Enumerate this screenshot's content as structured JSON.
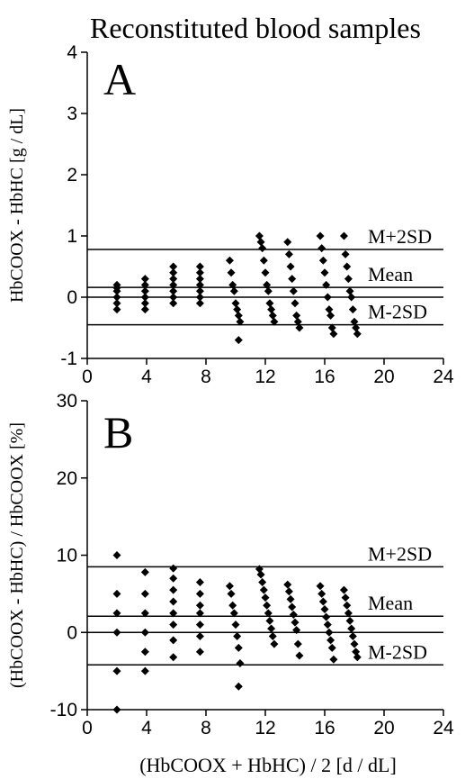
{
  "figure": {
    "title": "Reconstituted blood samples",
    "xlabel": "(HbCOOX + HbHC) / 2  [d / dL]"
  },
  "chart_data": [
    {
      "type": "scatter",
      "panel_label": "A",
      "title": "Reconstituted blood samples",
      "xlabel": "",
      "ylabel": "HbCOOX - HbHC [g / dL]",
      "xlim": [
        0,
        24
      ],
      "ylim": [
        -1,
        4
      ],
      "xticks": [
        0,
        4,
        8,
        12,
        16,
        20,
        24
      ],
      "yticks": [
        -1,
        0,
        1,
        2,
        3,
        4
      ],
      "grid": false,
      "reference_lines": [
        {
          "label": "M+2SD",
          "y": 0.78
        },
        {
          "label": "Mean",
          "y": 0.16
        },
        {
          "label": "",
          "y": 0
        },
        {
          "label": "M-2SD",
          "y": -0.45
        }
      ],
      "points": {
        "x": [
          2,
          2,
          2,
          2,
          2,
          2,
          3.9,
          3.9,
          3.9,
          3.9,
          3.9,
          3.9,
          5.8,
          5.8,
          5.8,
          5.8,
          5.8,
          5.8,
          5.8,
          7.6,
          7.6,
          7.6,
          7.6,
          7.6,
          7.6,
          7.6,
          9.6,
          9.7,
          9.8,
          9.9,
          10.0,
          10.1,
          10.2,
          10.3,
          10.2,
          11.6,
          11.7,
          11.8,
          11.9,
          12.0,
          12.1,
          12.2,
          12.3,
          12.4,
          12.5,
          12.6,
          13.5,
          13.6,
          13.7,
          13.8,
          13.9,
          14.0,
          14.1,
          14.2,
          14.3,
          15.7,
          15.8,
          15.9,
          16.0,
          16.1,
          16.2,
          16.3,
          16.4,
          16.5,
          16.6,
          17.3,
          17.4,
          17.5,
          17.6,
          17.7,
          17.8,
          17.9,
          18.0,
          18.1,
          18.2
        ],
        "y": [
          0.2,
          0.1,
          0,
          -0.1,
          -0.2,
          0.15,
          0.3,
          0.2,
          0.1,
          0,
          -0.1,
          -0.2,
          0.5,
          0.4,
          0.3,
          0.2,
          0.1,
          0,
          -0.1,
          0.5,
          0.4,
          0.3,
          0.2,
          0.1,
          0,
          -0.1,
          0.6,
          0.4,
          0.2,
          0.1,
          -0.1,
          -0.2,
          -0.3,
          -0.4,
          -0.7,
          1.0,
          0.9,
          0.8,
          0.6,
          0.4,
          0.2,
          0.1,
          -0.1,
          -0.2,
          -0.3,
          -0.4,
          0.9,
          0.7,
          0.5,
          0.3,
          0.1,
          -0.1,
          -0.3,
          -0.4,
          -0.5,
          1.0,
          0.8,
          0.6,
          0.4,
          0.2,
          0,
          -0.2,
          -0.3,
          -0.5,
          -0.6,
          1.0,
          0.7,
          0.5,
          0.3,
          0.1,
          0,
          -0.2,
          -0.4,
          -0.5,
          -0.6
        ]
      }
    },
    {
      "type": "scatter",
      "panel_label": "B",
      "xlabel": "(HbCOOX + HbHC) / 2  [d / dL]",
      "ylabel": "(HbCOOX - HbHC) / HbCOOX  [%]",
      "xlim": [
        0,
        24
      ],
      "ylim": [
        -10,
        30
      ],
      "xticks": [
        0,
        4,
        8,
        12,
        16,
        20,
        24
      ],
      "yticks": [
        -10,
        0,
        10,
        20,
        30
      ],
      "grid": false,
      "reference_lines": [
        {
          "label": "M+2SD",
          "y": 8.5
        },
        {
          "label": "Mean",
          "y": 2.1
        },
        {
          "label": "",
          "y": 0
        },
        {
          "label": "M-2SD",
          "y": -4.2
        }
      ],
      "points": {
        "x": [
          2,
          2,
          2,
          2,
          2,
          2,
          3.9,
          3.9,
          3.9,
          3.9,
          3.9,
          3.9,
          5.8,
          5.8,
          5.8,
          5.8,
          5.8,
          5.8,
          5.8,
          5.8,
          7.6,
          7.6,
          7.6,
          7.6,
          7.6,
          7.6,
          7.6,
          9.6,
          9.7,
          9.8,
          9.9,
          10.0,
          10.1,
          10.2,
          10.3,
          10.2,
          11.6,
          11.7,
          11.8,
          11.9,
          12.0,
          12.1,
          12.2,
          12.3,
          12.4,
          12.5,
          12.6,
          13.5,
          13.6,
          13.7,
          13.8,
          13.9,
          14.0,
          14.1,
          14.2,
          14.3,
          15.7,
          15.8,
          15.9,
          16.0,
          16.1,
          16.2,
          16.3,
          16.4,
          16.5,
          16.6,
          17.3,
          17.4,
          17.5,
          17.6,
          17.7,
          17.8,
          17.9,
          18.0,
          18.1,
          18.2
        ],
        "y": [
          10,
          5,
          2.5,
          0,
          -5,
          -10,
          7.8,
          5,
          2.5,
          0,
          -2.5,
          -5,
          8.3,
          7,
          5.5,
          4,
          2.5,
          1,
          -1,
          -3.2,
          6.5,
          5,
          3.5,
          2.5,
          1,
          -0.5,
          -2.5,
          6,
          5,
          3.5,
          2.5,
          1,
          -0.5,
          -2,
          -4,
          -7,
          8.2,
          7.5,
          6.5,
          5.5,
          4.5,
          3.5,
          2.5,
          1.5,
          0.5,
          -0.5,
          -1.5,
          6.2,
          5.3,
          4.3,
          3.3,
          2.3,
          1.3,
          0.3,
          -1.5,
          -3,
          6,
          5,
          4,
          3,
          2,
          1,
          0,
          -1,
          -2,
          -3.5,
          5.5,
          4.5,
          3.5,
          2.5,
          1.5,
          0.5,
          -0.5,
          -1.5,
          -2.5,
          -3.2
        ]
      }
    }
  ]
}
